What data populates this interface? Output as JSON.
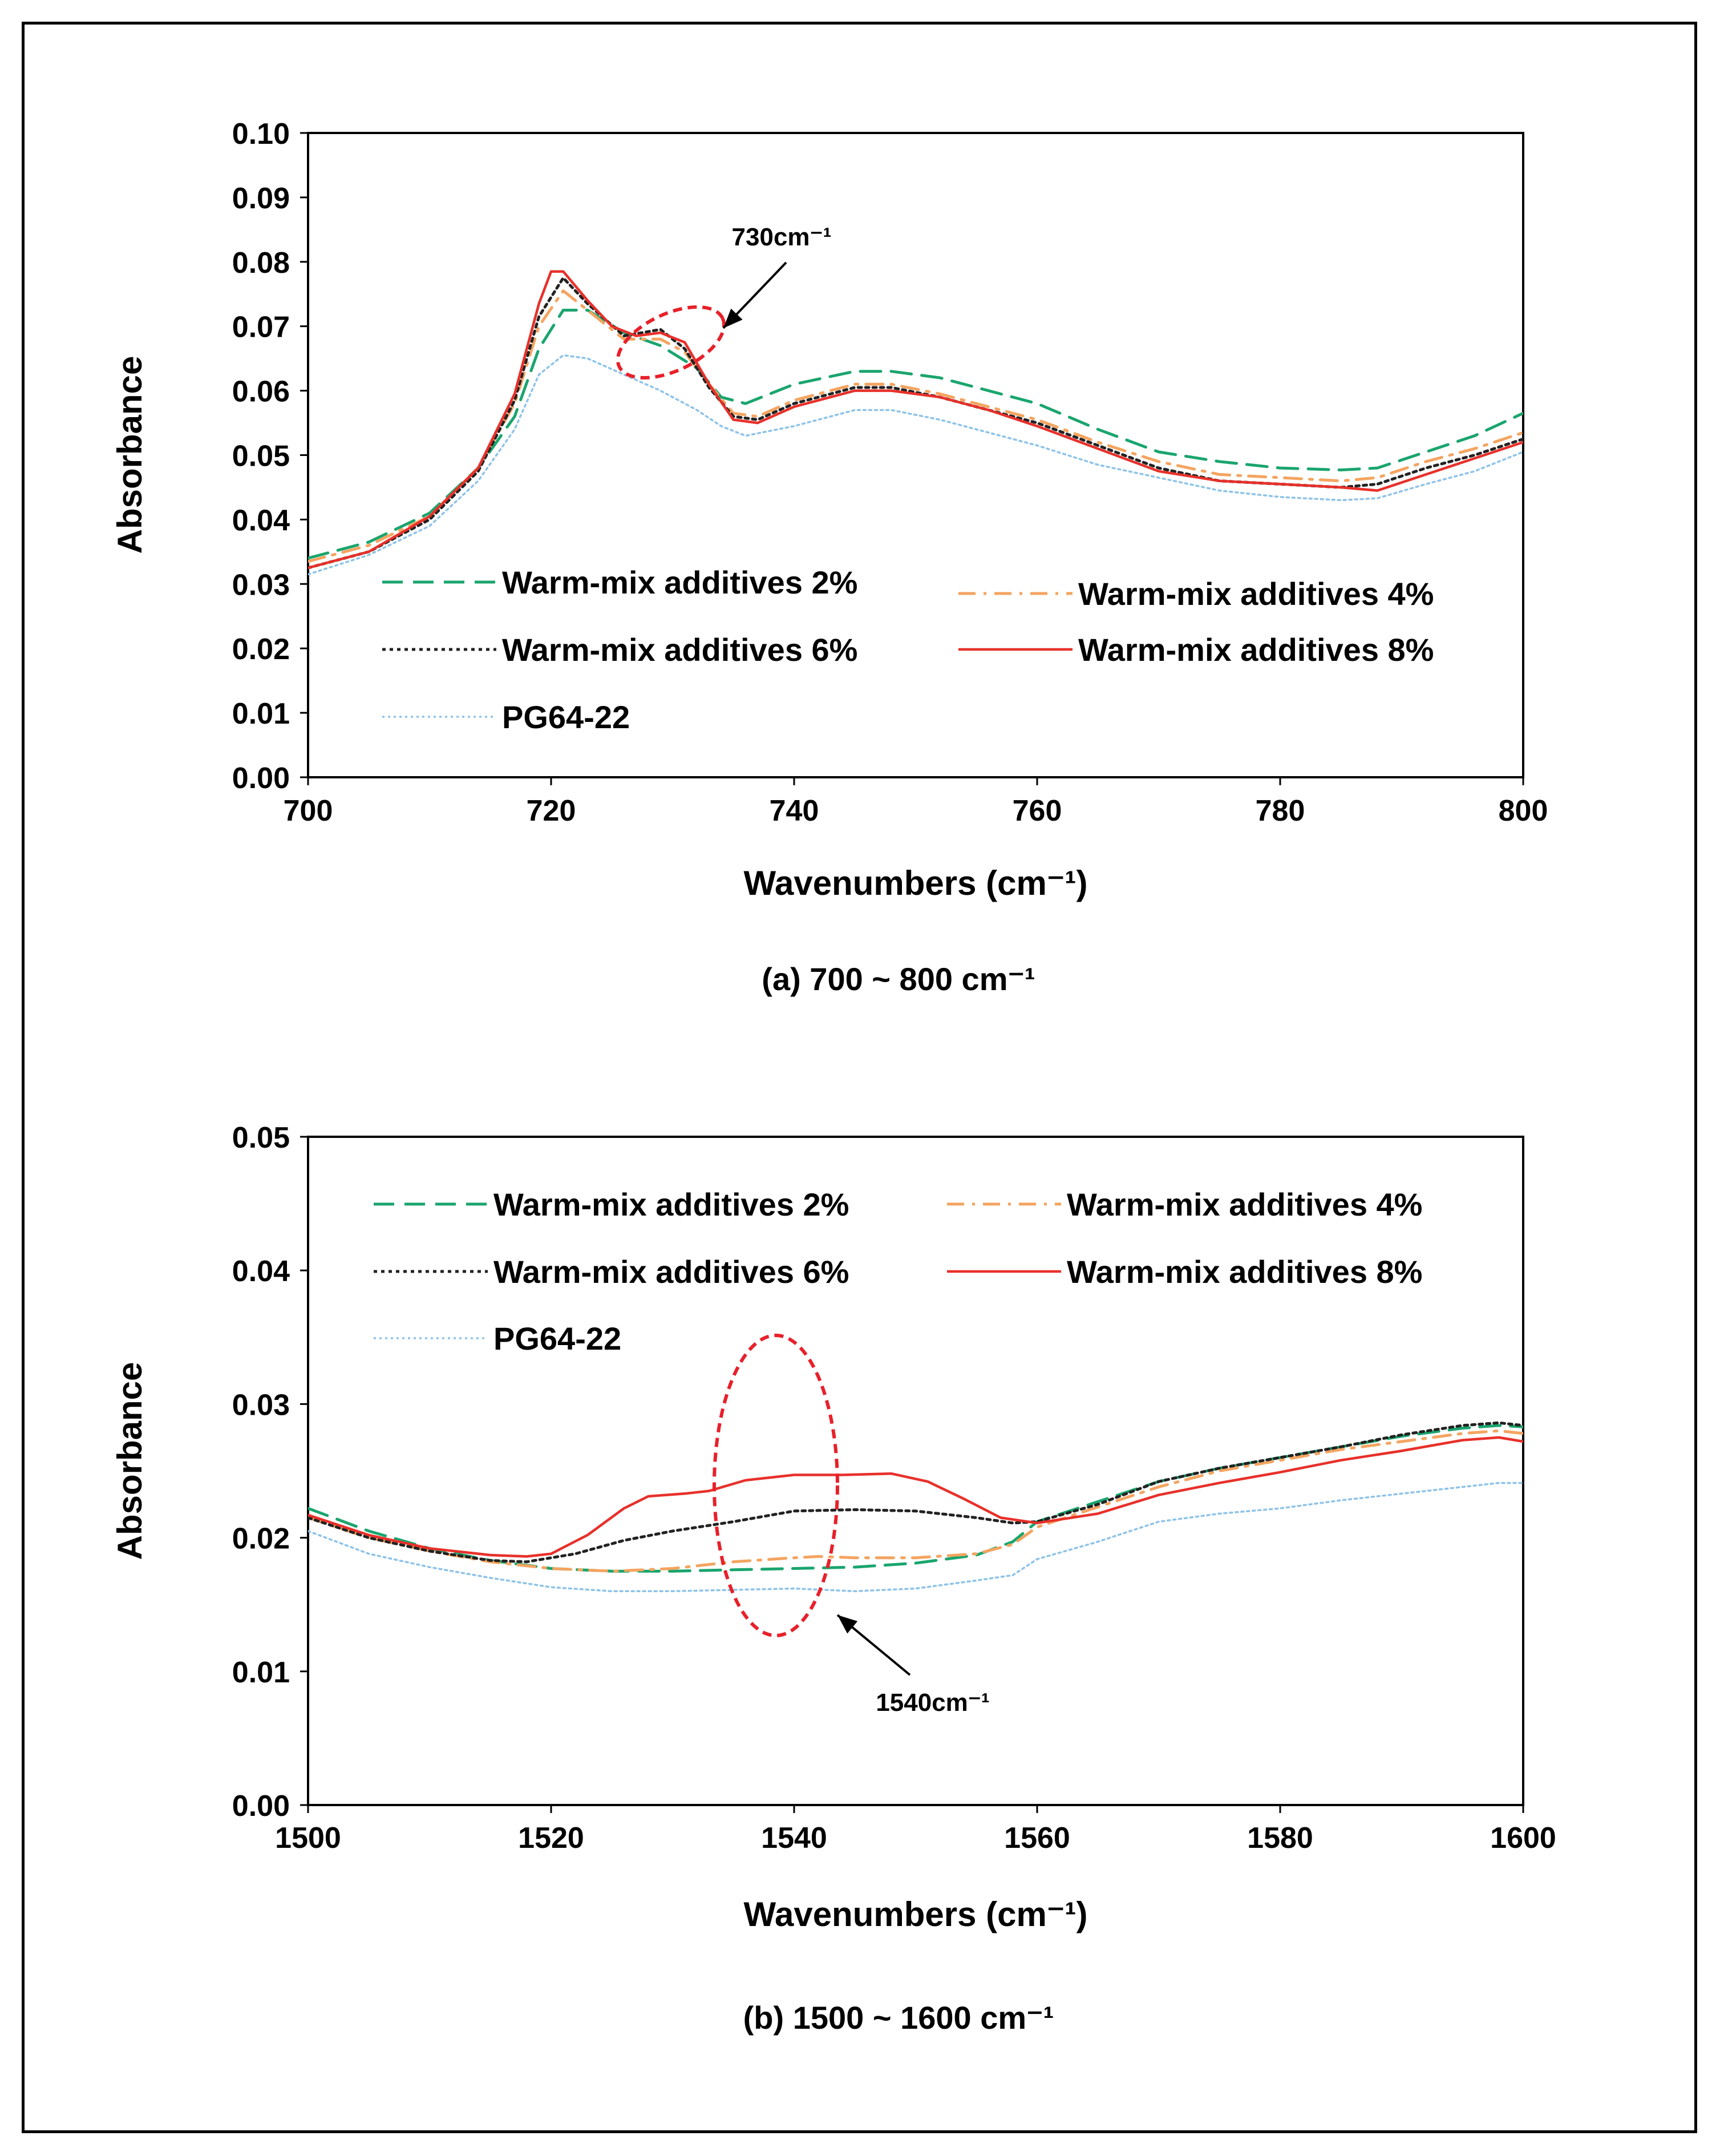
{
  "chart_data": [
    {
      "type": "line",
      "xlabel": "Wavenumbers (cm⁻¹)",
      "ylabel": "Absorbance",
      "caption": "(a) 700 ~ 800 cm⁻¹",
      "xlim": [
        700,
        800
      ],
      "ylim": [
        0.0,
        0.1
      ],
      "x_ticks": [
        "700",
        "720",
        "740",
        "760",
        "780",
        "800"
      ],
      "y_ticks": [
        "0.00",
        "0.01",
        "0.02",
        "0.03",
        "0.04",
        "0.05",
        "0.06",
        "0.07",
        "0.08",
        "0.09",
        "0.10"
      ],
      "grid": false,
      "legend_position": "lower-center",
      "annotation": "730cm⁻¹",
      "series": [
        {
          "name": "Warm-mix additives 2%",
          "color": "#1aa56e",
          "style": "dashed",
          "x": [
            700,
            705,
            710,
            714,
            717,
            719,
            721,
            723,
            726,
            729,
            732,
            734,
            736,
            740,
            745,
            748,
            752,
            756,
            760,
            765,
            770,
            775,
            780,
            785,
            788,
            792,
            796,
            800
          ],
          "y": [
            0.034,
            0.0365,
            0.041,
            0.048,
            0.056,
            0.0665,
            0.0725,
            0.0725,
            0.069,
            0.067,
            0.0635,
            0.059,
            0.058,
            0.061,
            0.063,
            0.063,
            0.062,
            0.06,
            0.058,
            0.054,
            0.0505,
            0.049,
            0.048,
            0.0477,
            0.048,
            0.0505,
            0.053,
            0.0565
          ]
        },
        {
          "name": "Warm-mix additives 4%",
          "color": "#f4a460",
          "style": "dashdot",
          "x": [
            700,
            705,
            710,
            714,
            717,
            719,
            721,
            723,
            726,
            729,
            731,
            733,
            735,
            737,
            740,
            745,
            748,
            752,
            756,
            760,
            765,
            770,
            775,
            780,
            785,
            788,
            792,
            796,
            800
          ],
          "y": [
            0.0335,
            0.036,
            0.0405,
            0.048,
            0.058,
            0.07,
            0.0755,
            0.0725,
            0.068,
            0.068,
            0.066,
            0.061,
            0.0565,
            0.056,
            0.0585,
            0.061,
            0.061,
            0.0595,
            0.0575,
            0.0555,
            0.052,
            0.049,
            0.047,
            0.0465,
            0.046,
            0.0465,
            0.049,
            0.051,
            0.0535
          ]
        },
        {
          "name": "Warm-mix additives 6%",
          "color": "#222222",
          "style": "dotted",
          "x": [
            700,
            705,
            710,
            714,
            717,
            719,
            721,
            723,
            726,
            729,
            731,
            733,
            735,
            737,
            740,
            745,
            748,
            752,
            756,
            760,
            765,
            770,
            775,
            780,
            785,
            788,
            792,
            796,
            800
          ],
          "y": [
            0.0325,
            0.035,
            0.04,
            0.0475,
            0.0585,
            0.0715,
            0.0775,
            0.0735,
            0.0685,
            0.0695,
            0.0665,
            0.0605,
            0.056,
            0.0555,
            0.058,
            0.0605,
            0.0605,
            0.059,
            0.057,
            0.055,
            0.0515,
            0.048,
            0.046,
            0.0455,
            0.045,
            0.0455,
            0.048,
            0.05,
            0.0525
          ]
        },
        {
          "name": "Warm-mix additives 8%",
          "color": "#e8302a",
          "style": "solid",
          "x": [
            700,
            705,
            710,
            714,
            717,
            719,
            720,
            721,
            723,
            725,
            727,
            729,
            731,
            733,
            735,
            737,
            740,
            745,
            748,
            752,
            756,
            760,
            765,
            770,
            775,
            780,
            785,
            788,
            792,
            796,
            800
          ],
          "y": [
            0.0325,
            0.035,
            0.0405,
            0.048,
            0.0595,
            0.0735,
            0.0785,
            0.0785,
            0.074,
            0.07,
            0.0685,
            0.069,
            0.0675,
            0.061,
            0.0555,
            0.055,
            0.0575,
            0.06,
            0.06,
            0.059,
            0.057,
            0.0545,
            0.051,
            0.0475,
            0.046,
            0.0455,
            0.045,
            0.0445,
            0.047,
            0.0495,
            0.052
          ]
        },
        {
          "name": "PG64-22",
          "color": "#8ec3e8",
          "style": "fine-dotted",
          "x": [
            700,
            705,
            710,
            714,
            717,
            719,
            721,
            723,
            726,
            729,
            732,
            734,
            736,
            740,
            745,
            748,
            752,
            756,
            760,
            765,
            770,
            775,
            780,
            785,
            788,
            792,
            796,
            800
          ],
          "y": [
            0.0315,
            0.0345,
            0.039,
            0.046,
            0.054,
            0.0625,
            0.0655,
            0.065,
            0.0625,
            0.06,
            0.057,
            0.0545,
            0.053,
            0.0545,
            0.057,
            0.057,
            0.0555,
            0.0535,
            0.0515,
            0.0485,
            0.0465,
            0.0445,
            0.0435,
            0.043,
            0.0433,
            0.0455,
            0.0475,
            0.0505
          ]
        }
      ]
    },
    {
      "type": "line",
      "xlabel": "Wavenumbers (cm⁻¹)",
      "ylabel": "Absorbance",
      "caption": "(b) 1500 ~ 1600 cm⁻¹",
      "xlim": [
        1500,
        1600
      ],
      "ylim": [
        0.0,
        0.05
      ],
      "x_ticks": [
        "1500",
        "1520",
        "1540",
        "1560",
        "1580",
        "1600"
      ],
      "y_ticks": [
        "0.00",
        "0.01",
        "0.02",
        "0.03",
        "0.04",
        "0.05"
      ],
      "grid": false,
      "legend_position": "top",
      "annotation": "1540cm⁻¹",
      "series": [
        {
          "name": "Warm-mix additives 2%",
          "color": "#1aa56e",
          "style": "dashed",
          "x": [
            1500,
            1505,
            1510,
            1515,
            1520,
            1525,
            1530,
            1535,
            1540,
            1545,
            1550,
            1555,
            1558,
            1560,
            1565,
            1570,
            1575,
            1580,
            1585,
            1590,
            1595,
            1598,
            1600
          ],
          "y": [
            0.0222,
            0.0205,
            0.0192,
            0.0183,
            0.0177,
            0.0175,
            0.0175,
            0.0176,
            0.0177,
            0.0178,
            0.0181,
            0.0187,
            0.0197,
            0.0212,
            0.0227,
            0.0242,
            0.0252,
            0.026,
            0.0268,
            0.0276,
            0.0282,
            0.0284,
            0.0283
          ]
        },
        {
          "name": "Warm-mix additives 4%",
          "color": "#f4a460",
          "style": "dashdot",
          "x": [
            1500,
            1505,
            1510,
            1515,
            1520,
            1525,
            1530,
            1535,
            1540,
            1542,
            1545,
            1550,
            1555,
            1558,
            1560,
            1565,
            1570,
            1575,
            1580,
            1585,
            1590,
            1595,
            1598,
            1600
          ],
          "y": [
            0.0215,
            0.02,
            0.019,
            0.0182,
            0.0177,
            0.0175,
            0.0177,
            0.0182,
            0.0185,
            0.0186,
            0.0185,
            0.0185,
            0.0188,
            0.0195,
            0.0208,
            0.0223,
            0.0238,
            0.025,
            0.0258,
            0.0266,
            0.0272,
            0.0278,
            0.028,
            0.0278
          ]
        },
        {
          "name": "Warm-mix additives 6%",
          "color": "#222222",
          "style": "dotted",
          "x": [
            1500,
            1505,
            1510,
            1515,
            1518,
            1522,
            1526,
            1530,
            1535,
            1540,
            1545,
            1550,
            1555,
            1558,
            1560,
            1565,
            1570,
            1575,
            1580,
            1585,
            1590,
            1595,
            1598,
            1600
          ],
          "y": [
            0.0215,
            0.02,
            0.019,
            0.0183,
            0.0182,
            0.0188,
            0.0198,
            0.0205,
            0.0212,
            0.022,
            0.0221,
            0.022,
            0.0215,
            0.0211,
            0.0212,
            0.0225,
            0.0242,
            0.0252,
            0.026,
            0.0268,
            0.0277,
            0.0284,
            0.0286,
            0.0284
          ]
        },
        {
          "name": "Warm-mix additives 8%",
          "color": "#e8302a",
          "style": "solid",
          "x": [
            1500,
            1505,
            1510,
            1515,
            1518,
            1520,
            1523,
            1526,
            1528,
            1531,
            1533,
            1536,
            1540,
            1544,
            1548,
            1551,
            1554,
            1557,
            1560,
            1565,
            1570,
            1575,
            1580,
            1585,
            1590,
            1595,
            1598,
            1600
          ],
          "y": [
            0.0217,
            0.0202,
            0.0192,
            0.0187,
            0.0186,
            0.0188,
            0.0202,
            0.0222,
            0.0231,
            0.0233,
            0.0235,
            0.0243,
            0.0247,
            0.0247,
            0.0248,
            0.0242,
            0.0229,
            0.0215,
            0.0211,
            0.0218,
            0.0232,
            0.0241,
            0.0249,
            0.0258,
            0.0265,
            0.0273,
            0.0275,
            0.0272
          ]
        },
        {
          "name": "PG64-22",
          "color": "#8ec3e8",
          "style": "fine-dotted",
          "x": [
            1500,
            1505,
            1510,
            1515,
            1520,
            1525,
            1530,
            1535,
            1540,
            1545,
            1550,
            1555,
            1558,
            1560,
            1565,
            1570,
            1575,
            1580,
            1585,
            1590,
            1595,
            1598,
            1600
          ],
          "y": [
            0.0205,
            0.0188,
            0.0178,
            0.017,
            0.0163,
            0.016,
            0.016,
            0.0161,
            0.0162,
            0.016,
            0.0162,
            0.0168,
            0.0172,
            0.0184,
            0.0197,
            0.0212,
            0.0218,
            0.0222,
            0.0228,
            0.0233,
            0.0238,
            0.0241,
            0.0241
          ]
        }
      ]
    }
  ]
}
